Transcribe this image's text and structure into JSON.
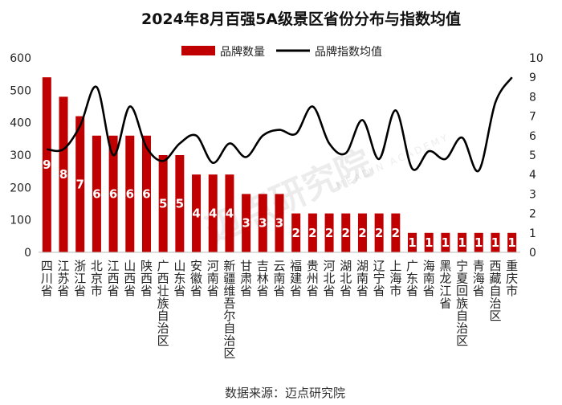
{
  "chart_data": {
    "type": "bar",
    "title": "2024年8月百强5A级景区省份分布与指数均值",
    "source": "数据来源：迈点研究院",
    "watermark": "迈点研究院",
    "watermark_sub": "MEADIN ACADEMY",
    "categories": [
      "四川省",
      "江苏省",
      "浙江省",
      "北京市",
      "江西省",
      "山西省",
      "陕西省",
      "广西壮族自治区",
      "山东省",
      "安徽省",
      "河南省",
      "新疆维吾尔自治区",
      "甘肃省",
      "吉林省",
      "云南省",
      "福建省",
      "贵州省",
      "河北省",
      "湖北省",
      "湖南省",
      "辽宁省",
      "上海市",
      "广东省",
      "海南省",
      "黑龙江省",
      "宁夏回族自治区",
      "青海省",
      "西藏自治区",
      "重庆市"
    ],
    "series": [
      {
        "name": "品牌数量",
        "type": "bar",
        "axis": "left",
        "color": "#c00000",
        "values": [
          540,
          480,
          420,
          360,
          360,
          360,
          360,
          300,
          300,
          240,
          240,
          240,
          180,
          180,
          180,
          120,
          120,
          120,
          120,
          120,
          120,
          120,
          60,
          60,
          60,
          60,
          60,
          60,
          60
        ],
        "labels": [
          "9",
          "8",
          "7",
          "6",
          "6",
          "6",
          "6",
          "5",
          "5",
          "4",
          "4",
          "4",
          "3",
          "3",
          "3",
          "2",
          "2",
          "2",
          "2",
          "2",
          "2",
          "2",
          "1",
          "1",
          "1",
          "1",
          "1",
          "1",
          "1"
        ]
      },
      {
        "name": "品牌指数均值",
        "type": "line",
        "axis": "right",
        "color": "#000000",
        "values": [
          5.3,
          5.3,
          6.5,
          8.5,
          5.0,
          7.5,
          5.4,
          4.7,
          5.6,
          6.0,
          4.6,
          5.6,
          4.9,
          6.0,
          6.3,
          6.1,
          7.5,
          5.6,
          5.1,
          6.8,
          4.8,
          7.3,
          4.3,
          5.2,
          4.8,
          5.9,
          4.2,
          7.7,
          9.0
        ]
      }
    ],
    "ylim_left": [
      0,
      600
    ],
    "yticks_left": [
      0,
      100,
      200,
      300,
      400,
      500,
      600
    ],
    "ylim_right": [
      0,
      10
    ],
    "yticks_right": [
      0,
      1,
      2,
      3,
      4,
      5,
      6,
      7,
      8,
      9,
      10
    ],
    "grid": false,
    "legend_position": "top"
  }
}
